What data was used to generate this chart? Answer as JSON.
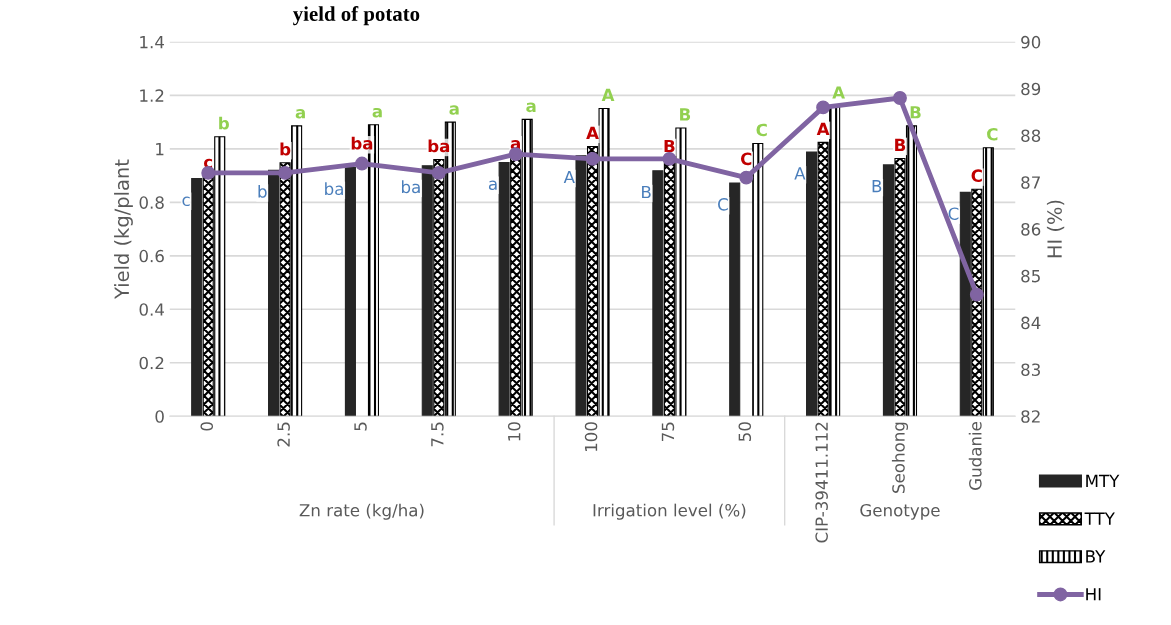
{
  "chart_data": {
    "type": "bar",
    "title": "yield of potato",
    "ylabel": "Yield (kg/plant",
    "y2label": "HI (%)",
    "categories": [
      "0",
      "2.5",
      "5",
      "7.5",
      "10",
      "100",
      "75",
      "50",
      "CIP-39411.112",
      "Seohong",
      "Gudanie"
    ],
    "series": [
      {
        "name": "MTY",
        "color": "#262626",
        "values": [
          0.889,
          0.92,
          0.93,
          0.937,
          0.949,
          0.974,
          0.918,
          0.872,
          0.988,
          0.94,
          0.837
        ],
        "value_labels": [
          "c",
          "b",
          "ba",
          "ba",
          "a",
          "A",
          "B",
          "C",
          "A",
          "B",
          "C"
        ]
      },
      {
        "name": "TTY",
        "color": "#000000",
        "values": [
          0.9,
          0.948,
          null,
          0.96,
          0.97,
          1.009,
          0.96,
          null,
          1.024,
          0.964,
          0.849
        ],
        "value_labels": [
          "c",
          "b",
          "ba",
          "ba",
          "a",
          "A",
          "B",
          "C",
          "A",
          "B",
          "C"
        ]
      },
      {
        "name": "BY",
        "color": "#000000",
        "values": [
          1.045,
          1.086,
          1.09,
          1.1,
          1.11,
          1.151,
          1.078,
          1.02,
          1.16,
          1.086,
          1.004
        ],
        "value_labels": [
          "b",
          "a",
          "a",
          "a",
          "a",
          "A",
          "B",
          "C",
          "A",
          "B",
          "C"
        ]
      },
      {
        "name": "HI",
        "type": "line",
        "axis": "y2",
        "color": "#8064a2",
        "marker": "circle",
        "values": [
          87.2,
          87.2,
          87.4,
          87.2,
          87.6,
          87.5,
          87.5,
          87.1,
          88.6,
          88.8,
          84.6
        ]
      }
    ],
    "ylim": [
      0,
      1.4
    ],
    "yticks": [
      0,
      0.2,
      0.4,
      0.6,
      0.8,
      1,
      1.2,
      1.4
    ],
    "y2lim": [
      82,
      90
    ],
    "y2ticks": [
      82,
      83,
      84,
      85,
      86,
      87,
      88,
      89,
      90
    ],
    "grid": "y",
    "legend": "right",
    "annotations": [
      "Zn rate (kg/ha)",
      "Irrigation level (%)",
      "Genotype"
    ]
  }
}
